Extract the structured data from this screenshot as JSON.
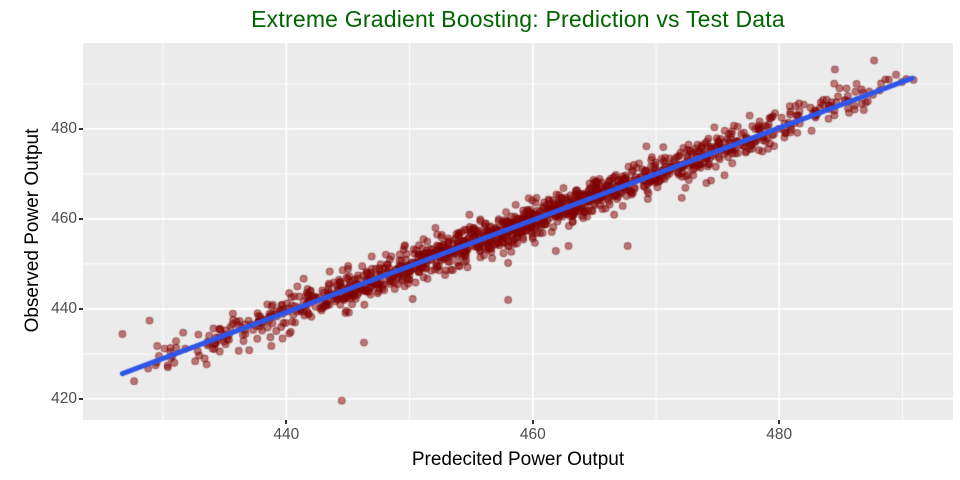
{
  "title": {
    "text": "Extreme Gradient Boosting: Prediction vs Test Data",
    "color": "#006400"
  },
  "axes": {
    "x": {
      "label": "Predecited Power Output"
    },
    "y": {
      "label": "Observed Power Output"
    }
  },
  "panel": {
    "bg": "#EBEBEB",
    "grid_major_color": "#FFFFFF",
    "grid_minor_color": "#FFFFFF",
    "tick_mark_color": "#333333",
    "tick_label_color": "#4D4D4D"
  },
  "chart_data": {
    "type": "scatter",
    "title": "Extreme Gradient Boosting: Prediction vs Test Data",
    "xlabel": "Predecited Power Output",
    "ylabel": "Observed Power Output",
    "xlim": [
      423.5,
      494.1
    ],
    "ylim": [
      415.3,
      499.1
    ],
    "x_ticks": [
      440,
      460,
      480
    ],
    "y_ticks": [
      420,
      440,
      460,
      480
    ],
    "x_minor_ticks": [
      430,
      450,
      470,
      490
    ],
    "y_minor_ticks": [
      430,
      450,
      470,
      490
    ],
    "grid": "white major and minor gridlines on grey panel (ggplot default theme)",
    "legend_position": "none",
    "description": "Dense cloud of ~1400 semi-transparent dark-red points (observed vs predicted power output) hugging the diagonal; a thick straight blue linear-fit line runs from about (426.7, 425.6) to (490.8, 491.3), i.e. y ~= 1.027x - 12.7.",
    "points_generator": {
      "n": 1400,
      "seed": 1234567,
      "x_min": 427.0,
      "x_max": 491.5,
      "x_distribution": "triangular (denser mid-range 440-470, sparser at extremes)",
      "trend_slope": 1.027,
      "trend_intercept": -12.7,
      "noise_sd": 2.0,
      "outlier_rate": 0.03,
      "outlier_extra": 4.5,
      "outlier_below_fraction": 0.65
    },
    "notable_outliers": [
      [
        426.7,
        434.4
      ],
      [
        428.9,
        437.4
      ],
      [
        444.5,
        419.6
      ],
      [
        446.3,
        432.5
      ],
      [
        458.0,
        442.0
      ],
      [
        458.0,
        450.2
      ],
      [
        462.9,
        454.0
      ],
      [
        467.7,
        454.0
      ],
      [
        487.7,
        495.2
      ]
    ],
    "trend_line": {
      "x1": 426.7,
      "y1": 425.6,
      "x2": 490.8,
      "y2": 491.3,
      "color": "#2F55E8",
      "width": 5
    },
    "point_style": {
      "radius": 3.4,
      "fill": "#8B0000",
      "fill_alpha": 0.5,
      "stroke": "#6E0000",
      "stroke_alpha": 0.45,
      "stroke_width": 1.1
    }
  }
}
